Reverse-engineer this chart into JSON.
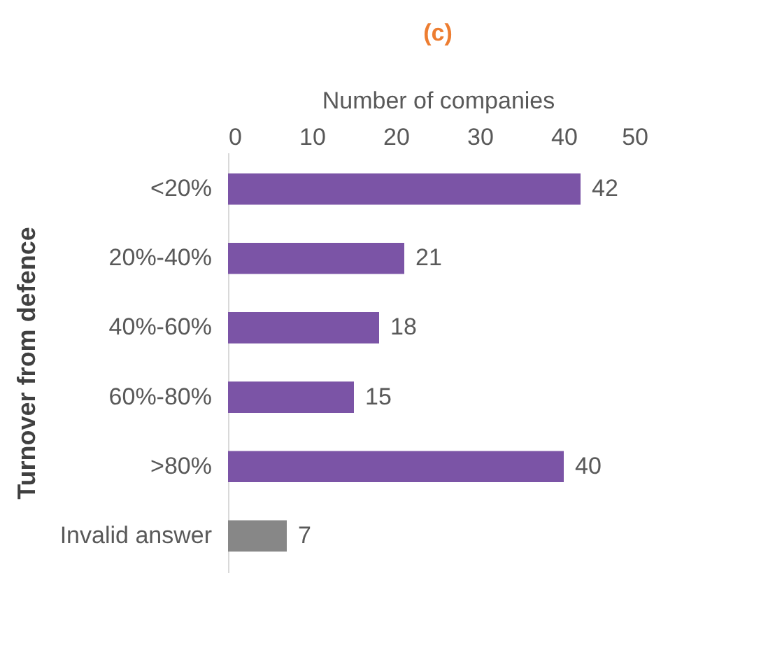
{
  "chart_data": {
    "type": "bar",
    "orientation": "horizontal",
    "title": "(c)",
    "xlabel": "Number of companies",
    "ylabel": "Turnover from defence",
    "categories": [
      "<20%",
      "20%-40%",
      "40%-60%",
      "60%-80%",
      ">80%",
      "Invalid answer"
    ],
    "values": [
      42,
      21,
      18,
      15,
      40,
      7
    ],
    "colors": [
      "#7b54a6",
      "#7b54a6",
      "#7b54a6",
      "#7b54a6",
      "#7b54a6",
      "#878787"
    ],
    "xlim": [
      0,
      50
    ],
    "xticks": [
      0,
      10,
      20,
      30,
      40,
      50
    ],
    "grid": false,
    "data_labels": true
  }
}
